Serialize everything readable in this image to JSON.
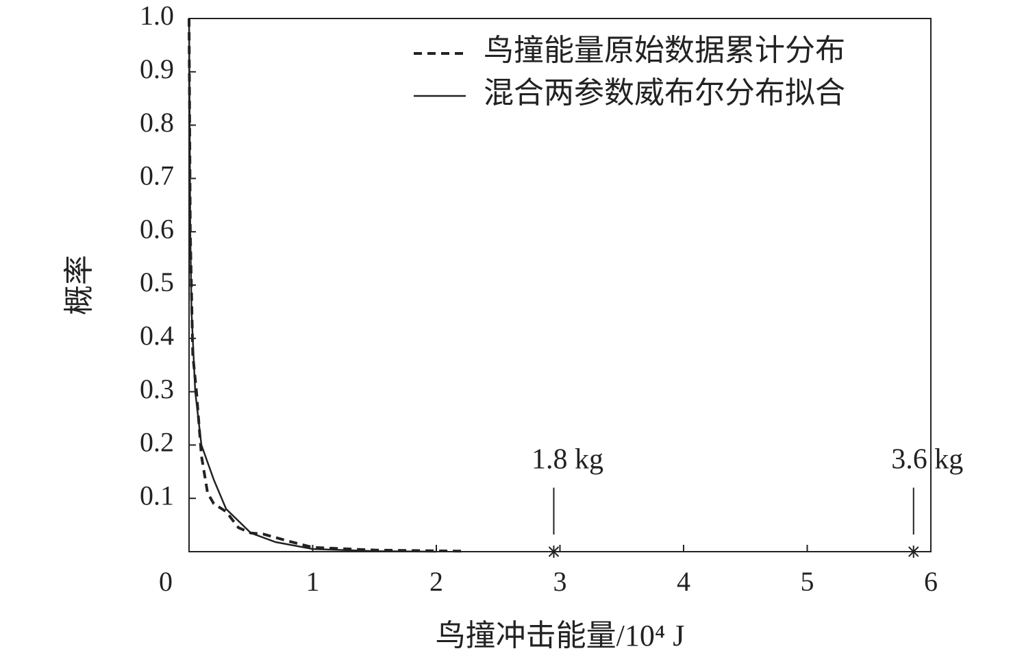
{
  "chart_data": {
    "type": "line",
    "x_label": "鸟撞冲击能量/10⁴ J",
    "y_label": "概率",
    "xlim": [
      0,
      6
    ],
    "ylim": [
      0,
      1
    ],
    "xticks": [
      0,
      1,
      2,
      3,
      4,
      5,
      6
    ],
    "yticks": [
      0.1,
      0.2,
      0.3,
      0.4,
      0.5,
      0.6,
      0.7,
      0.8,
      0.9,
      {
        "value": 1,
        "label": "1.0"
      }
    ],
    "legend": "upper right",
    "series": [
      {
        "name": "鸟撞能量原始数据累计分布",
        "color": "#222222",
        "dash": true,
        "x": [
          0,
          0.01,
          0.03,
          0.06,
          0.1,
          0.15,
          0.2,
          0.3,
          0.4,
          0.5,
          0.6,
          0.8,
          1.0,
          1.5,
          2.2
        ],
        "values": [
          1.0,
          0.6,
          0.37,
          0.3,
          0.18,
          0.11,
          0.09,
          0.075,
          0.045,
          0.035,
          0.033,
          0.02,
          0.008,
          0.003,
          0.001
        ]
      },
      {
        "name": "混合两参数威布尔分布拟合",
        "color": "#222222",
        "dash": false,
        "x": [
          0,
          0.01,
          0.02,
          0.05,
          0.1,
          0.2,
          0.3,
          0.5,
          0.7,
          1.0,
          1.5,
          2.0
        ],
        "values": [
          1.0,
          0.6,
          0.45,
          0.3,
          0.2,
          0.135,
          0.08,
          0.035,
          0.018,
          0.005,
          0.001,
          0
        ]
      }
    ],
    "annotations": [
      {
        "text": "1.8 kg",
        "x": 2.95,
        "y": 0.12
      },
      {
        "text": "3.6 kg",
        "x": 5.86,
        "y": 0.12
      }
    ]
  }
}
